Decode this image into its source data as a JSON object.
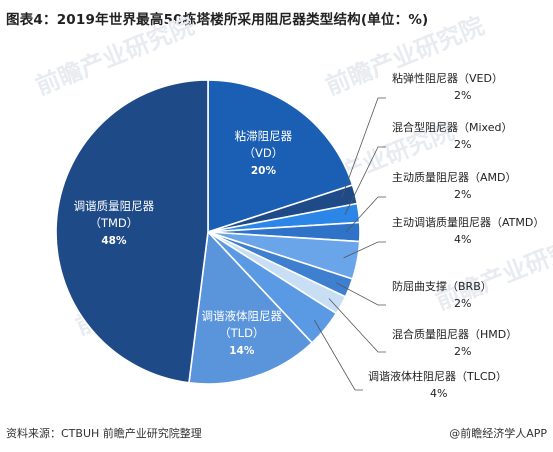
{
  "title": "图表4：2019年世界最高50栋塔楼所采用阻尼器类型结构(单位：%)",
  "footer": {
    "source": "资料来源：CTBUH 前瞻产业研究院整理",
    "credit": "@前瞻经济学人APP"
  },
  "watermark": "前瞻产业研究院",
  "colors": {
    "TMD": "#1e4a88",
    "VD": "#1b5fb5",
    "VED": "#1e4a88",
    "Mixed": "#2b86e8",
    "AMD": "#2f73c9",
    "ATMD": "#6aa5ea",
    "BRB": "#3f7fd0",
    "HMD": "#c7def5",
    "TLCD": "#5a9ae4",
    "TLD": "#5a95dc"
  },
  "chart_data": {
    "type": "pie",
    "title": "图表4：2019年世界最高50栋塔楼所采用阻尼器类型结构(单位：%)",
    "unit": "%",
    "slices": [
      {
        "key": "VD",
        "name": "粘滞阻尼器",
        "abbr": "（VD）",
        "value": 20,
        "label": "20%"
      },
      {
        "key": "VED",
        "name": "粘弹性阻尼器",
        "abbr": "（VED）",
        "value": 2,
        "label": "2%"
      },
      {
        "key": "Mixed",
        "name": "混合型阻尼器",
        "abbr": "（Mixed）",
        "value": 2,
        "label": "2%"
      },
      {
        "key": "AMD",
        "name": "主动质量阻尼器",
        "abbr": "（AMD）",
        "value": 2,
        "label": "2%"
      },
      {
        "key": "ATMD",
        "name": "主动调谐质量阻尼器",
        "abbr": "（ATMD）",
        "value": 4,
        "label": "4%"
      },
      {
        "key": "BRB",
        "name": "防屈曲支撑",
        "abbr": "（BRB）",
        "value": 2,
        "label": "2%"
      },
      {
        "key": "HMD",
        "name": "混合质量阻尼器",
        "abbr": "（HMD）",
        "value": 2,
        "label": "2%"
      },
      {
        "key": "TLCD",
        "name": "调谐液体柱阻尼器",
        "abbr": "（TLCD）",
        "value": 4,
        "label": "4%"
      },
      {
        "key": "TLD",
        "name": "调谐液体阻尼器",
        "abbr": "（TLD）",
        "value": 14,
        "label": "14%"
      },
      {
        "key": "TMD",
        "name": "调谐质量阻尼器",
        "abbr": "（TMD）",
        "value": 48,
        "label": "48%"
      }
    ]
  }
}
